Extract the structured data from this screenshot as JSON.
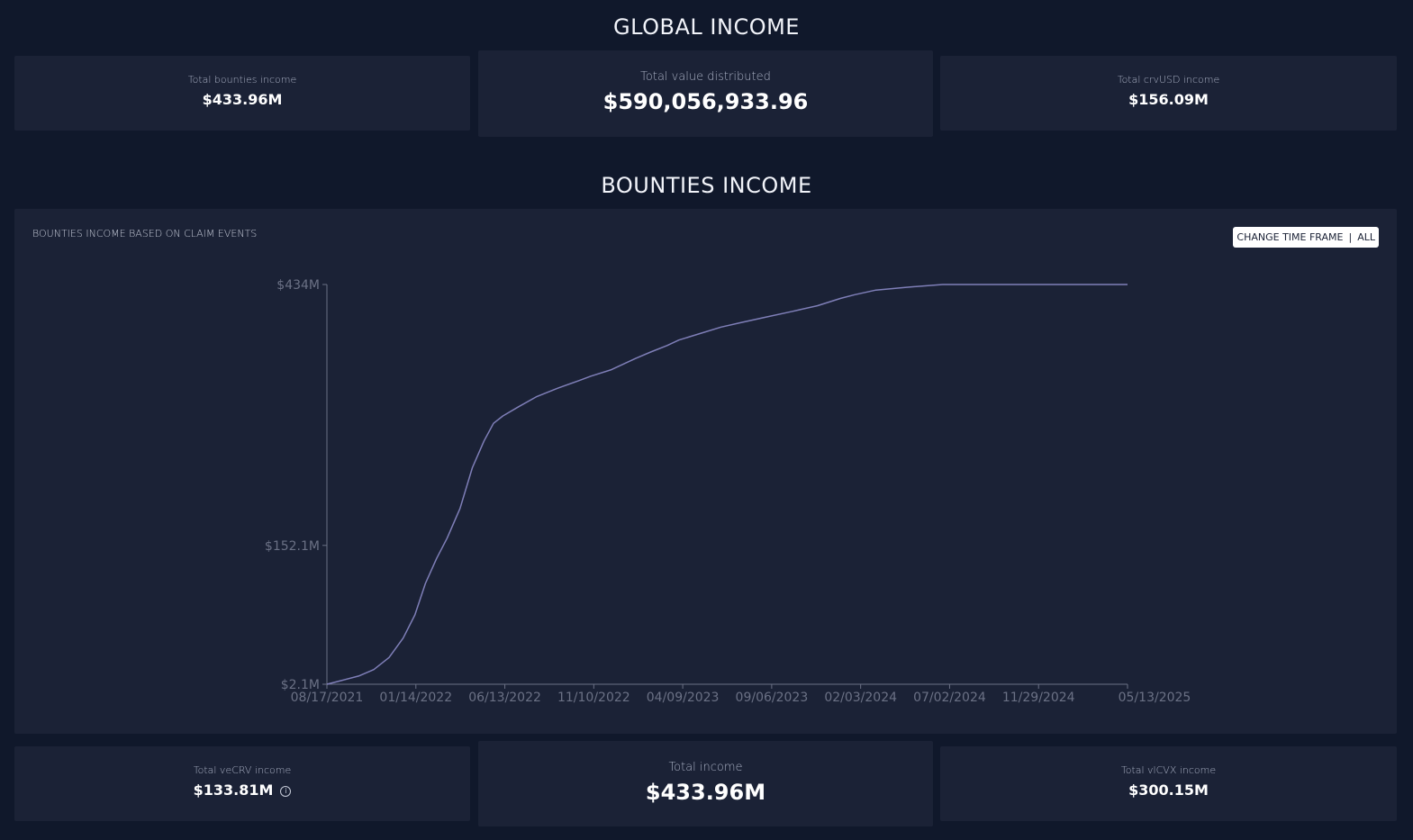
{
  "global": {
    "title": "GLOBAL INCOME",
    "cards": {
      "bounties": {
        "label": "Total bounties income",
        "value": "$433.96M"
      },
      "distributed": {
        "label": "Total value distributed",
        "value": "$590,056,933.96"
      },
      "crvusd": {
        "label": "Total crvUSD income",
        "value": "$156.09M"
      }
    }
  },
  "bounties": {
    "title": "BOUNTIES INCOME",
    "caption": "BOUNTIES INCOME BASED ON CLAIM EVENTS",
    "timeframe": {
      "label": "CHANGE TIME FRAME",
      "sep": "|",
      "value": "ALL"
    }
  },
  "bottom": {
    "vecrv": {
      "label": "Total veCRV income",
      "value": "$133.81M",
      "info_icon": "info-icon"
    },
    "total": {
      "label": "Total income",
      "value": "$433.96M"
    },
    "vlcvx": {
      "label": "Total vlCVX income",
      "value": "$300.15M"
    }
  },
  "colors": {
    "line": "#7f7fb8",
    "axis": "#6b7185",
    "background": "#10182b",
    "panel": "#1b2236"
  },
  "chart_data": {
    "type": "line",
    "title": "BOUNTIES INCOME BASED ON CLAIM EVENTS",
    "xlabel": "",
    "ylabel": "",
    "x_ticks": [
      "08/17/2021",
      "01/14/2022",
      "06/13/2022",
      "11/10/2022",
      "04/09/2023",
      "09/06/2023",
      "02/03/2024",
      "07/02/2024",
      "11/29/2024",
      "05/13/2025"
    ],
    "y_ticks": [
      {
        "label": "$2.1M",
        "value": 2.1
      },
      {
        "label": "$152.1M",
        "value": 152.1
      },
      {
        "label": "$434M",
        "value": 434
      }
    ],
    "xlim": [
      "08/17/2021",
      "05/13/2025"
    ],
    "ylim": [
      2.1,
      434
    ],
    "grid": false,
    "series": [
      {
        "x": [
          "2021-08-17",
          "2021-09-10",
          "2021-10-10",
          "2021-11-05",
          "2021-12-01",
          "2021-12-25",
          "2022-01-14",
          "2022-02-01",
          "2022-02-20",
          "2022-03-10",
          "2022-04-01",
          "2022-04-22",
          "2022-05-12",
          "2022-05-28",
          "2022-06-13",
          "2022-07-10",
          "2022-08-10",
          "2022-09-15",
          "2022-10-20",
          "2022-11-10",
          "2022-12-15",
          "2023-01-25",
          "2023-02-20",
          "2023-03-20",
          "2023-04-09",
          "2023-05-15",
          "2023-06-20",
          "2023-07-25",
          "2023-09-06",
          "2023-10-20",
          "2023-12-01",
          "2024-01-10",
          "2024-02-03",
          "2024-03-10",
          "2024-05-01",
          "2024-07-02",
          "2024-09-01",
          "2024-10-20",
          "2024-11-29",
          "2025-01-15",
          "2025-03-15",
          "2025-05-13"
        ],
        "values": [
          2.1,
          6,
          11,
          18,
          31,
          52,
          77,
          111,
          138,
          160,
          192,
          236,
          265,
          284,
          292,
          302,
          313,
          322,
          330,
          335,
          342,
          354,
          361,
          368,
          374,
          381,
          388,
          393,
          399,
          405,
          411,
          419,
          423,
          428,
          431,
          433.96,
          433.96,
          433.96,
          433.96,
          433.96,
          433.96,
          433.96
        ]
      }
    ]
  }
}
